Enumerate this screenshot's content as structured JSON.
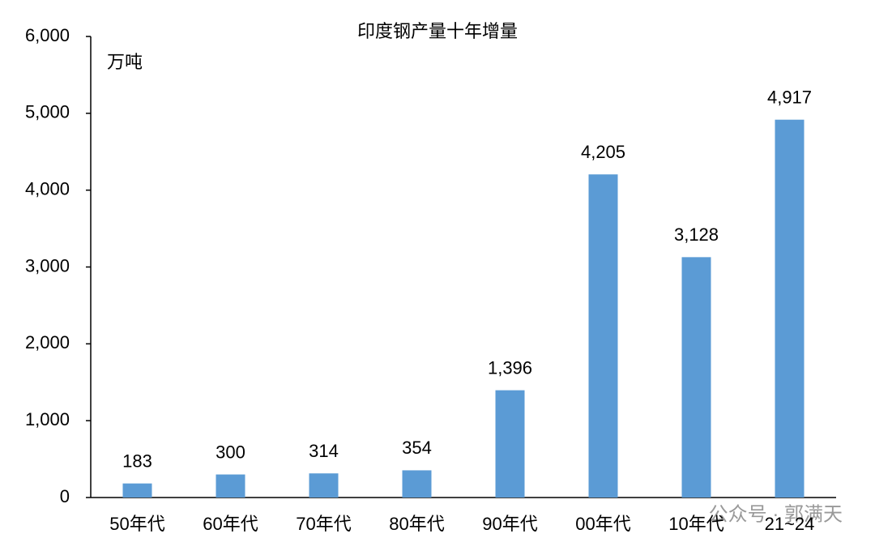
{
  "chart_data": {
    "type": "bar",
    "title": "印度钢产量十年增量",
    "unit_label": "万吨",
    "categories": [
      "50年代",
      "60年代",
      "70年代",
      "80年代",
      "90年代",
      "00年代",
      "10年代",
      "21~24"
    ],
    "values": [
      183,
      300,
      314,
      354,
      1396,
      4205,
      3128,
      4917
    ],
    "value_labels": [
      "183",
      "300",
      "314",
      "354",
      "1,396",
      "4,205",
      "3,128",
      "4,917"
    ],
    "color": "#5b9bd5",
    "ylim": [
      0,
      6000
    ],
    "yticks": [
      0,
      {
        "value": 1000,
        "label": "1,000"
      },
      {
        "value": 2000,
        "label": "2,000"
      },
      {
        "value": 3000,
        "label": "3,000"
      },
      {
        "value": 4000,
        "label": "4,000"
      },
      {
        "value": 5000,
        "label": "5,000"
      },
      {
        "value": 6000,
        "label": "6,000"
      }
    ],
    "grid": false,
    "watermark": "公众号 · 郭满天"
  }
}
